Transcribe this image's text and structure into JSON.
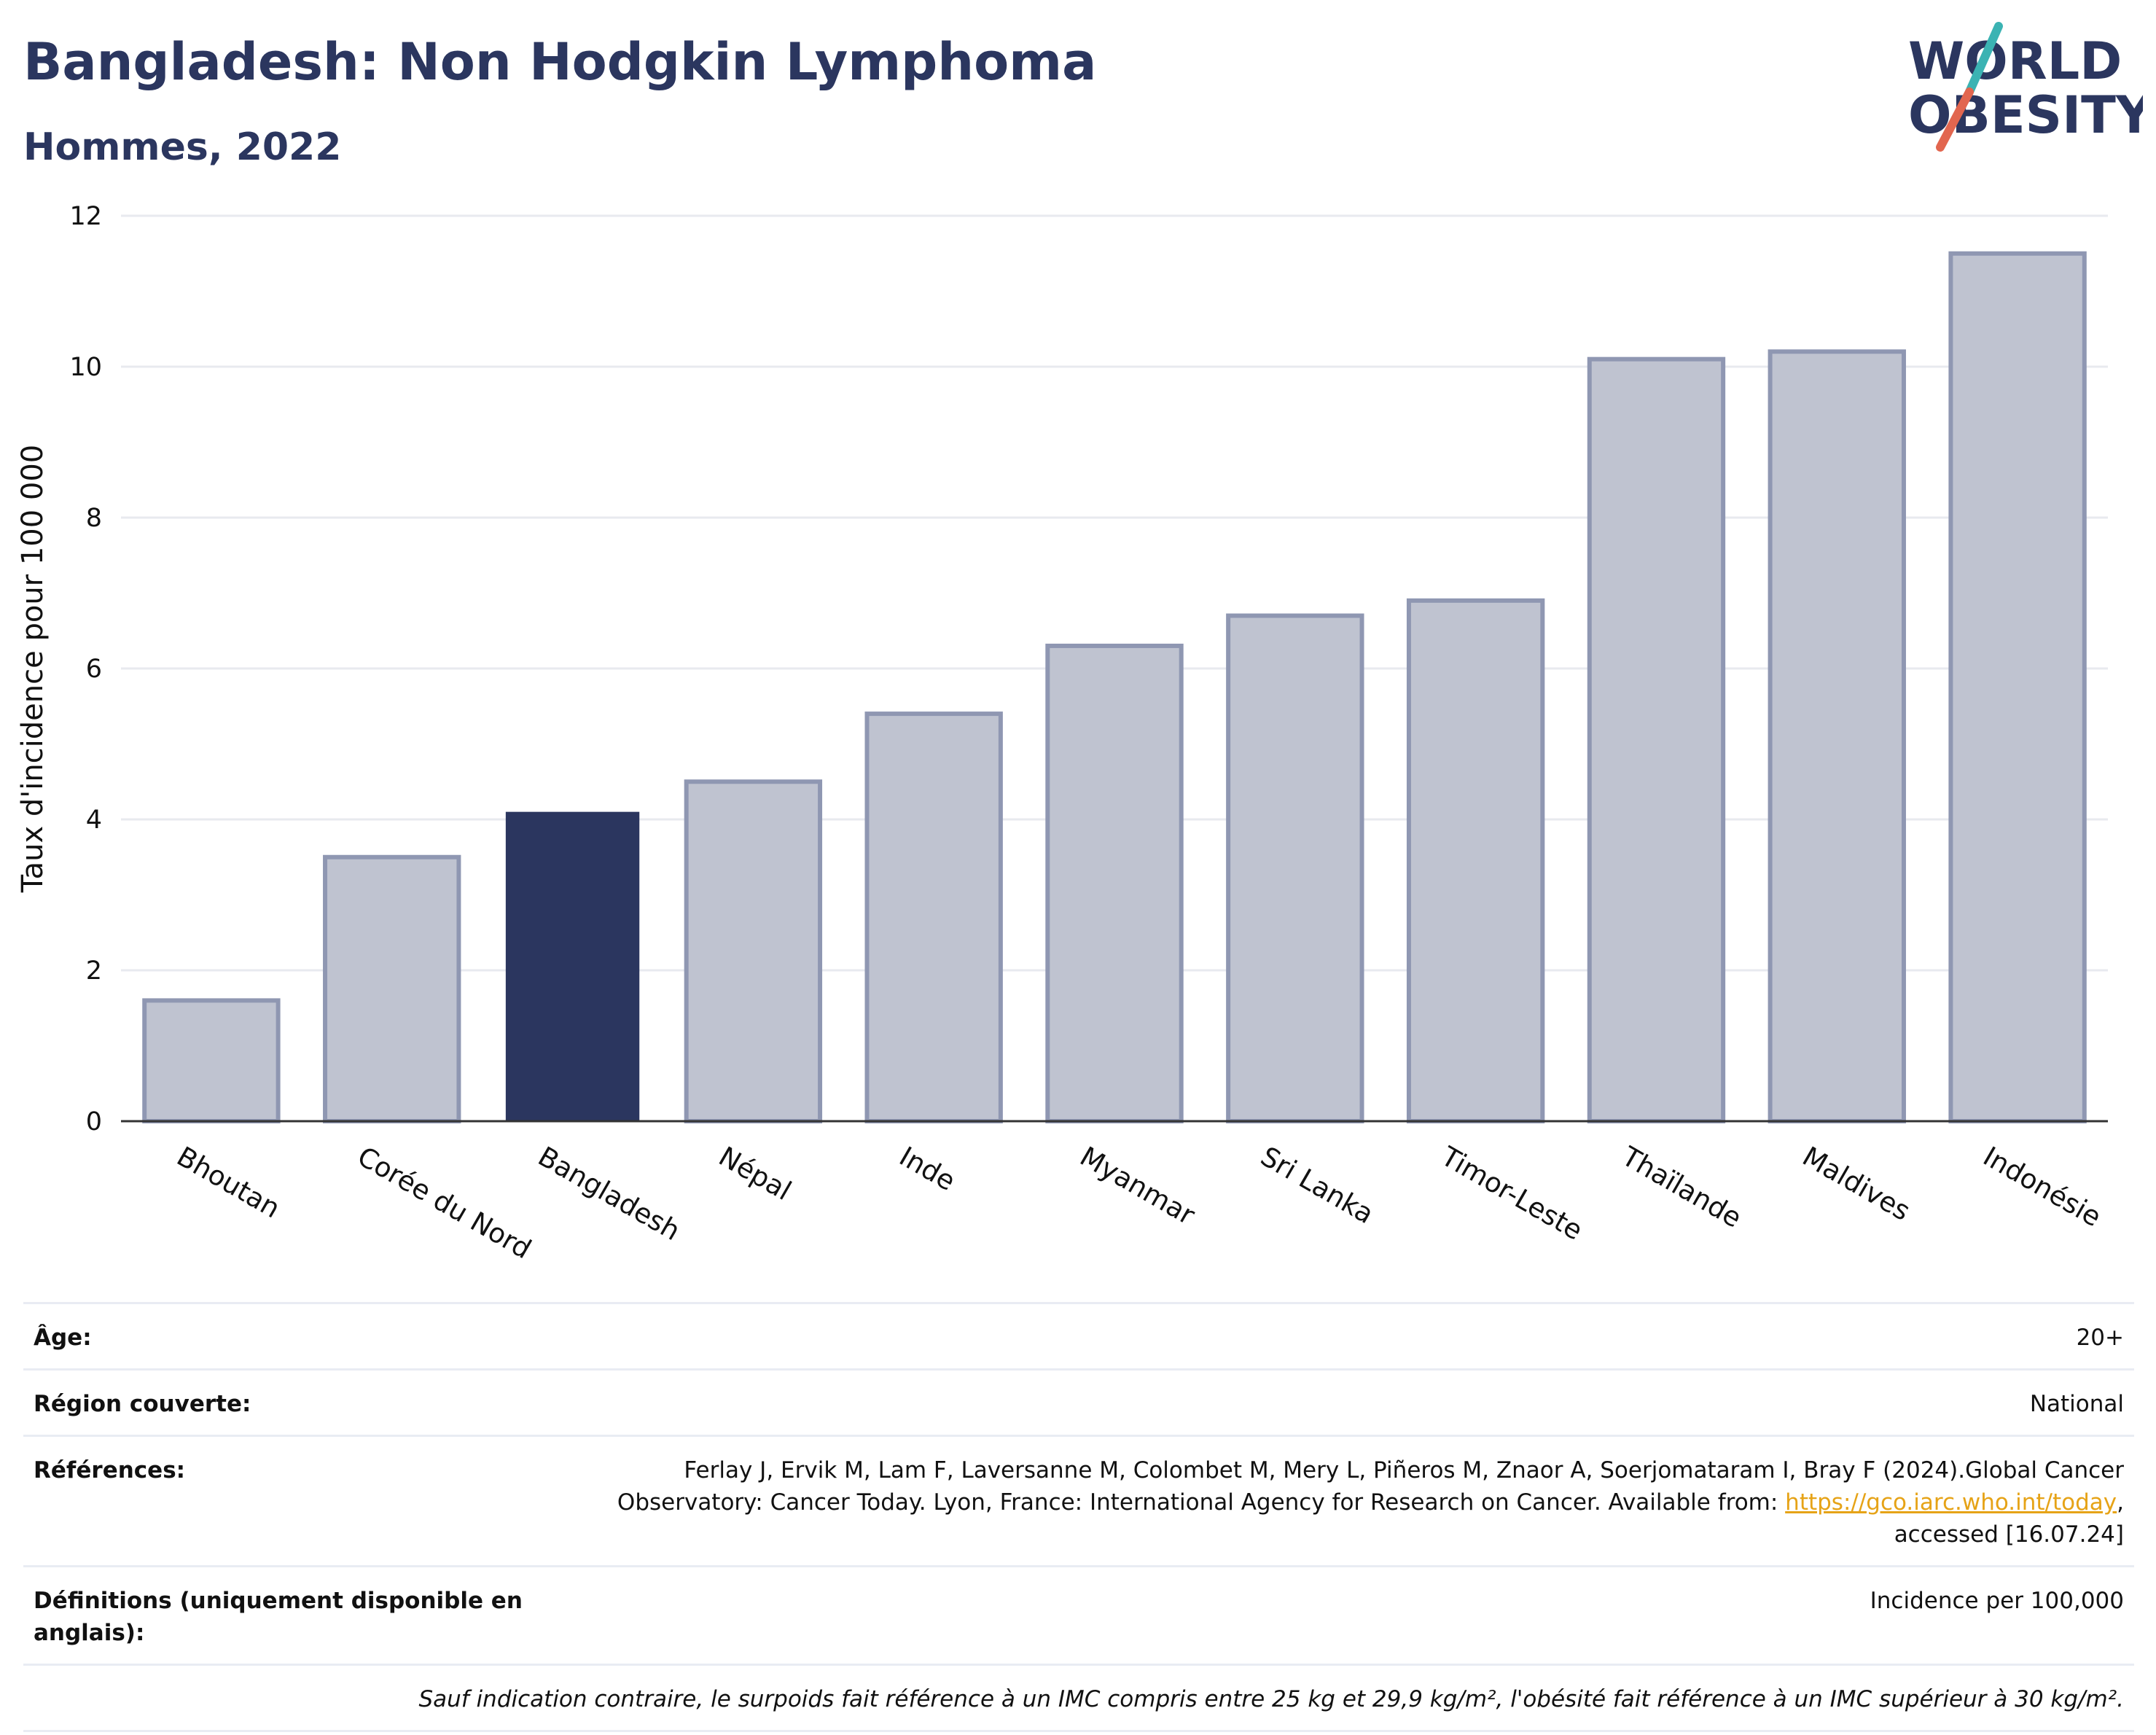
{
  "header": {
    "title": "Bangladesh: Non Hodgkin Lymphoma",
    "subtitle": "Hommes, 2022"
  },
  "logo": {
    "line1": "WORLD",
    "line2": "OBESITY",
    "colors": {
      "text": "#2b365f",
      "slash_top": "#3bb3b3",
      "slash_bottom": "#e2664f"
    }
  },
  "chart_data": {
    "type": "bar",
    "title": "Bangladesh: Non Hodgkin Lymphoma",
    "subtitle": "Hommes, 2022",
    "xlabel": "",
    "ylabel": "Taux d'incidence pour 100 000",
    "ylim": [
      0,
      12
    ],
    "yticks": [
      0,
      2,
      4,
      6,
      8,
      10,
      12
    ],
    "grid": true,
    "categories": [
      "Bhoutan",
      "Corée du Nord",
      "Bangladesh",
      "Népal",
      "Inde",
      "Myanmar",
      "Sri Lanka",
      "Timor-Leste",
      "Thaïlande",
      "Maldives",
      "Indonésie"
    ],
    "values": [
      1.6,
      3.5,
      4.1,
      4.5,
      5.4,
      6.3,
      6.7,
      6.9,
      10.1,
      10.2,
      11.5
    ],
    "highlight": "Bangladesh",
    "colors": {
      "bar": "#bfc3d0",
      "bar_edge": "#8f97b2",
      "highlight": "#2b365f",
      "grid": "#e8eaef",
      "axis": "#333333"
    }
  },
  "info": {
    "age_label": "Âge:",
    "age_value": "20+",
    "region_label": "Région couverte:",
    "region_value": "National",
    "references_label": "Références:",
    "references_text_1": "Ferlay J, Ervik M, Lam F, Laversanne M, Colombet M, Mery L, Piñeros M, Znaor A, Soerjomataram I, Bray F (2024).Global Cancer",
    "references_text_2": "Observatory: Cancer Today. Lyon, France: International Agency for Research on Cancer. Available from: ",
    "references_link": "https://gco.iarc.who.int/today",
    "references_text_3": ",",
    "references_text_4": "accessed [16.07.24]",
    "definitions_label": "Définitions (uniquement disponible en anglais):",
    "definitions_value": "Incidence per 100,000",
    "note": "Sauf indication contraire, le surpoids fait référence à un IMC compris entre 25 kg et 29,9 kg/m², l'obésité fait référence à un IMC supérieur à 30 kg/m²."
  }
}
